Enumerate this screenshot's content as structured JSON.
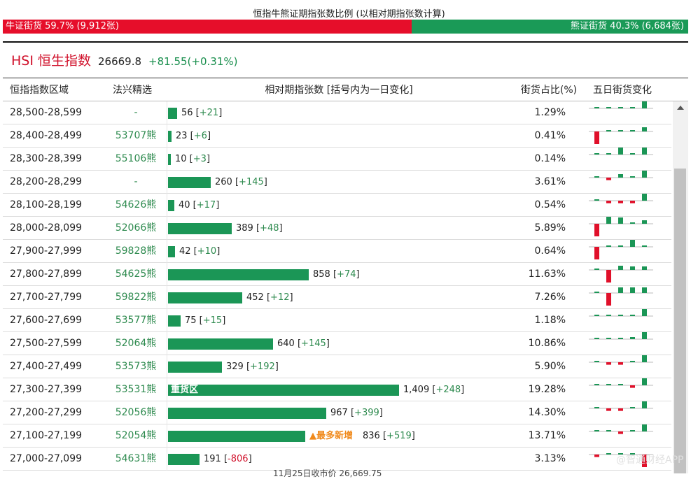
{
  "title": "恒指牛熊证期指张数比例 (以相对期指张数计算)",
  "ratio": {
    "bull_label": "牛证街货 59.7% (9,912张)",
    "bull_share": 0.597,
    "bear_label": "熊证街货 40.3% (6,684张)",
    "bear_share": 0.403,
    "bull_color": "#e60e2a",
    "bear_color": "#1a9a57"
  },
  "index": {
    "name": "HSI 恒生指数",
    "value": "26669.8",
    "change": "+81.55(+0.31%)"
  },
  "headers": {
    "range": "恒指指数区域",
    "cbbc": "法兴精选",
    "contracts": "相对期指张数 [括号内为一日变化]",
    "share": "街货占比(%)",
    "five_day": "五日街货变化"
  },
  "labels": {
    "heavy_zone": "重货区",
    "most_new": "▲最多新增"
  },
  "rows": [
    {
      "range": "28,500-28,599",
      "cbbc": "-",
      "contracts": 56,
      "contracts_text": "56",
      "change": "+21",
      "share": "1.29%",
      "tag": "",
      "spark": [
        0,
        0.1,
        0.1,
        0,
        1
      ]
    },
    {
      "range": "28,400-28,499",
      "cbbc": "53707熊",
      "contracts": 23,
      "contracts_text": "23",
      "change": "+6",
      "share": "0.41%",
      "tag": "",
      "spark": [
        -1,
        0.2,
        0,
        0.2,
        0.6
      ]
    },
    {
      "range": "28,300-28,399",
      "cbbc": "55106熊",
      "contracts": 10,
      "contracts_text": "10",
      "change": "+3",
      "share": "0.14%",
      "tag": "",
      "spark": [
        0,
        0,
        1,
        0,
        1
      ]
    },
    {
      "range": "28,200-28,299",
      "cbbc": "-",
      "contracts": 260,
      "contracts_text": "260",
      "change": "+145",
      "share": "3.61%",
      "tag": "",
      "spark": [
        0,
        -0.2,
        0.5,
        0.2,
        1
      ]
    },
    {
      "range": "28,100-28,199",
      "cbbc": "54626熊",
      "contracts": 40,
      "contracts_text": "40",
      "change": "+17",
      "share": "0.54%",
      "tag": "",
      "spark": [
        0,
        -0.1,
        -0.1,
        -0.1,
        1
      ]
    },
    {
      "range": "28,000-28,099",
      "cbbc": "52066熊",
      "contracts": 389,
      "contracts_text": "389",
      "change": "+48",
      "share": "5.89%",
      "tag": "",
      "spark": [
        -1,
        1,
        0.9,
        0.2,
        0.5
      ]
    },
    {
      "range": "27,900-27,999",
      "cbbc": "59828熊",
      "contracts": 42,
      "contracts_text": "42",
      "change": "+10",
      "share": "0.64%",
      "tag": "",
      "spark": [
        -1,
        0,
        0,
        1,
        0
      ]
    },
    {
      "range": "27,800-27,899",
      "cbbc": "54625熊",
      "contracts": 858,
      "contracts_text": "858",
      "change": "+74",
      "share": "11.63%",
      "tag": "",
      "spark": [
        0,
        -1,
        0.6,
        0.5,
        0.5
      ]
    },
    {
      "range": "27,700-27,799",
      "cbbc": "59822熊",
      "contracts": 452,
      "contracts_text": "452",
      "change": "+12",
      "share": "7.26%",
      "tag": "",
      "spark": [
        0,
        -1,
        0.8,
        0.8,
        0.8
      ]
    },
    {
      "range": "27,600-27,699",
      "cbbc": "53577熊",
      "contracts": 75,
      "contracts_text": "75",
      "change": "+15",
      "share": "1.18%",
      "tag": "",
      "spark": [
        0,
        0,
        0,
        0.1,
        1
      ]
    },
    {
      "range": "27,500-27,599",
      "cbbc": "52064熊",
      "contracts": 640,
      "contracts_text": "640",
      "change": "+145",
      "share": "10.86%",
      "tag": "",
      "spark": [
        0,
        0,
        0.1,
        0.3,
        1
      ]
    },
    {
      "range": "27,400-27,499",
      "cbbc": "53573熊",
      "contracts": 329,
      "contracts_text": "329",
      "change": "+192",
      "share": "5.90%",
      "tag": "",
      "spark": [
        0,
        -0.1,
        -0.1,
        0.1,
        1
      ]
    },
    {
      "range": "27,300-27,399",
      "cbbc": "53531熊",
      "contracts": 1409,
      "contracts_text": "1,409",
      "change": "+248",
      "share": "19.28%",
      "tag": "heavy",
      "spark": [
        0,
        0.1,
        0.1,
        -0.2,
        1
      ]
    },
    {
      "range": "27,200-27,299",
      "cbbc": "52056熊",
      "contracts": 967,
      "contracts_text": "967",
      "change": "+399",
      "share": "14.30%",
      "tag": "",
      "spark": [
        0,
        -0.1,
        -0.1,
        0.1,
        1
      ]
    },
    {
      "range": "27,100-27,199",
      "cbbc": "52054熊",
      "contracts": 836,
      "contracts_text": "836",
      "change": "+519",
      "share": "13.71%",
      "tag": "new",
      "spark": [
        0,
        0.1,
        -0.1,
        0.1,
        1
      ]
    },
    {
      "range": "27,000-27,099",
      "cbbc": "54631熊",
      "contracts": 191,
      "contracts_text": "191",
      "change": "-806",
      "share": "3.13%",
      "tag": "",
      "spark": [
        -0.1,
        0.1,
        0,
        0.1,
        -1
      ]
    }
  ],
  "watermark": "@智通财经APP",
  "bottom_note": "11月25日收市价 26,669.75"
}
